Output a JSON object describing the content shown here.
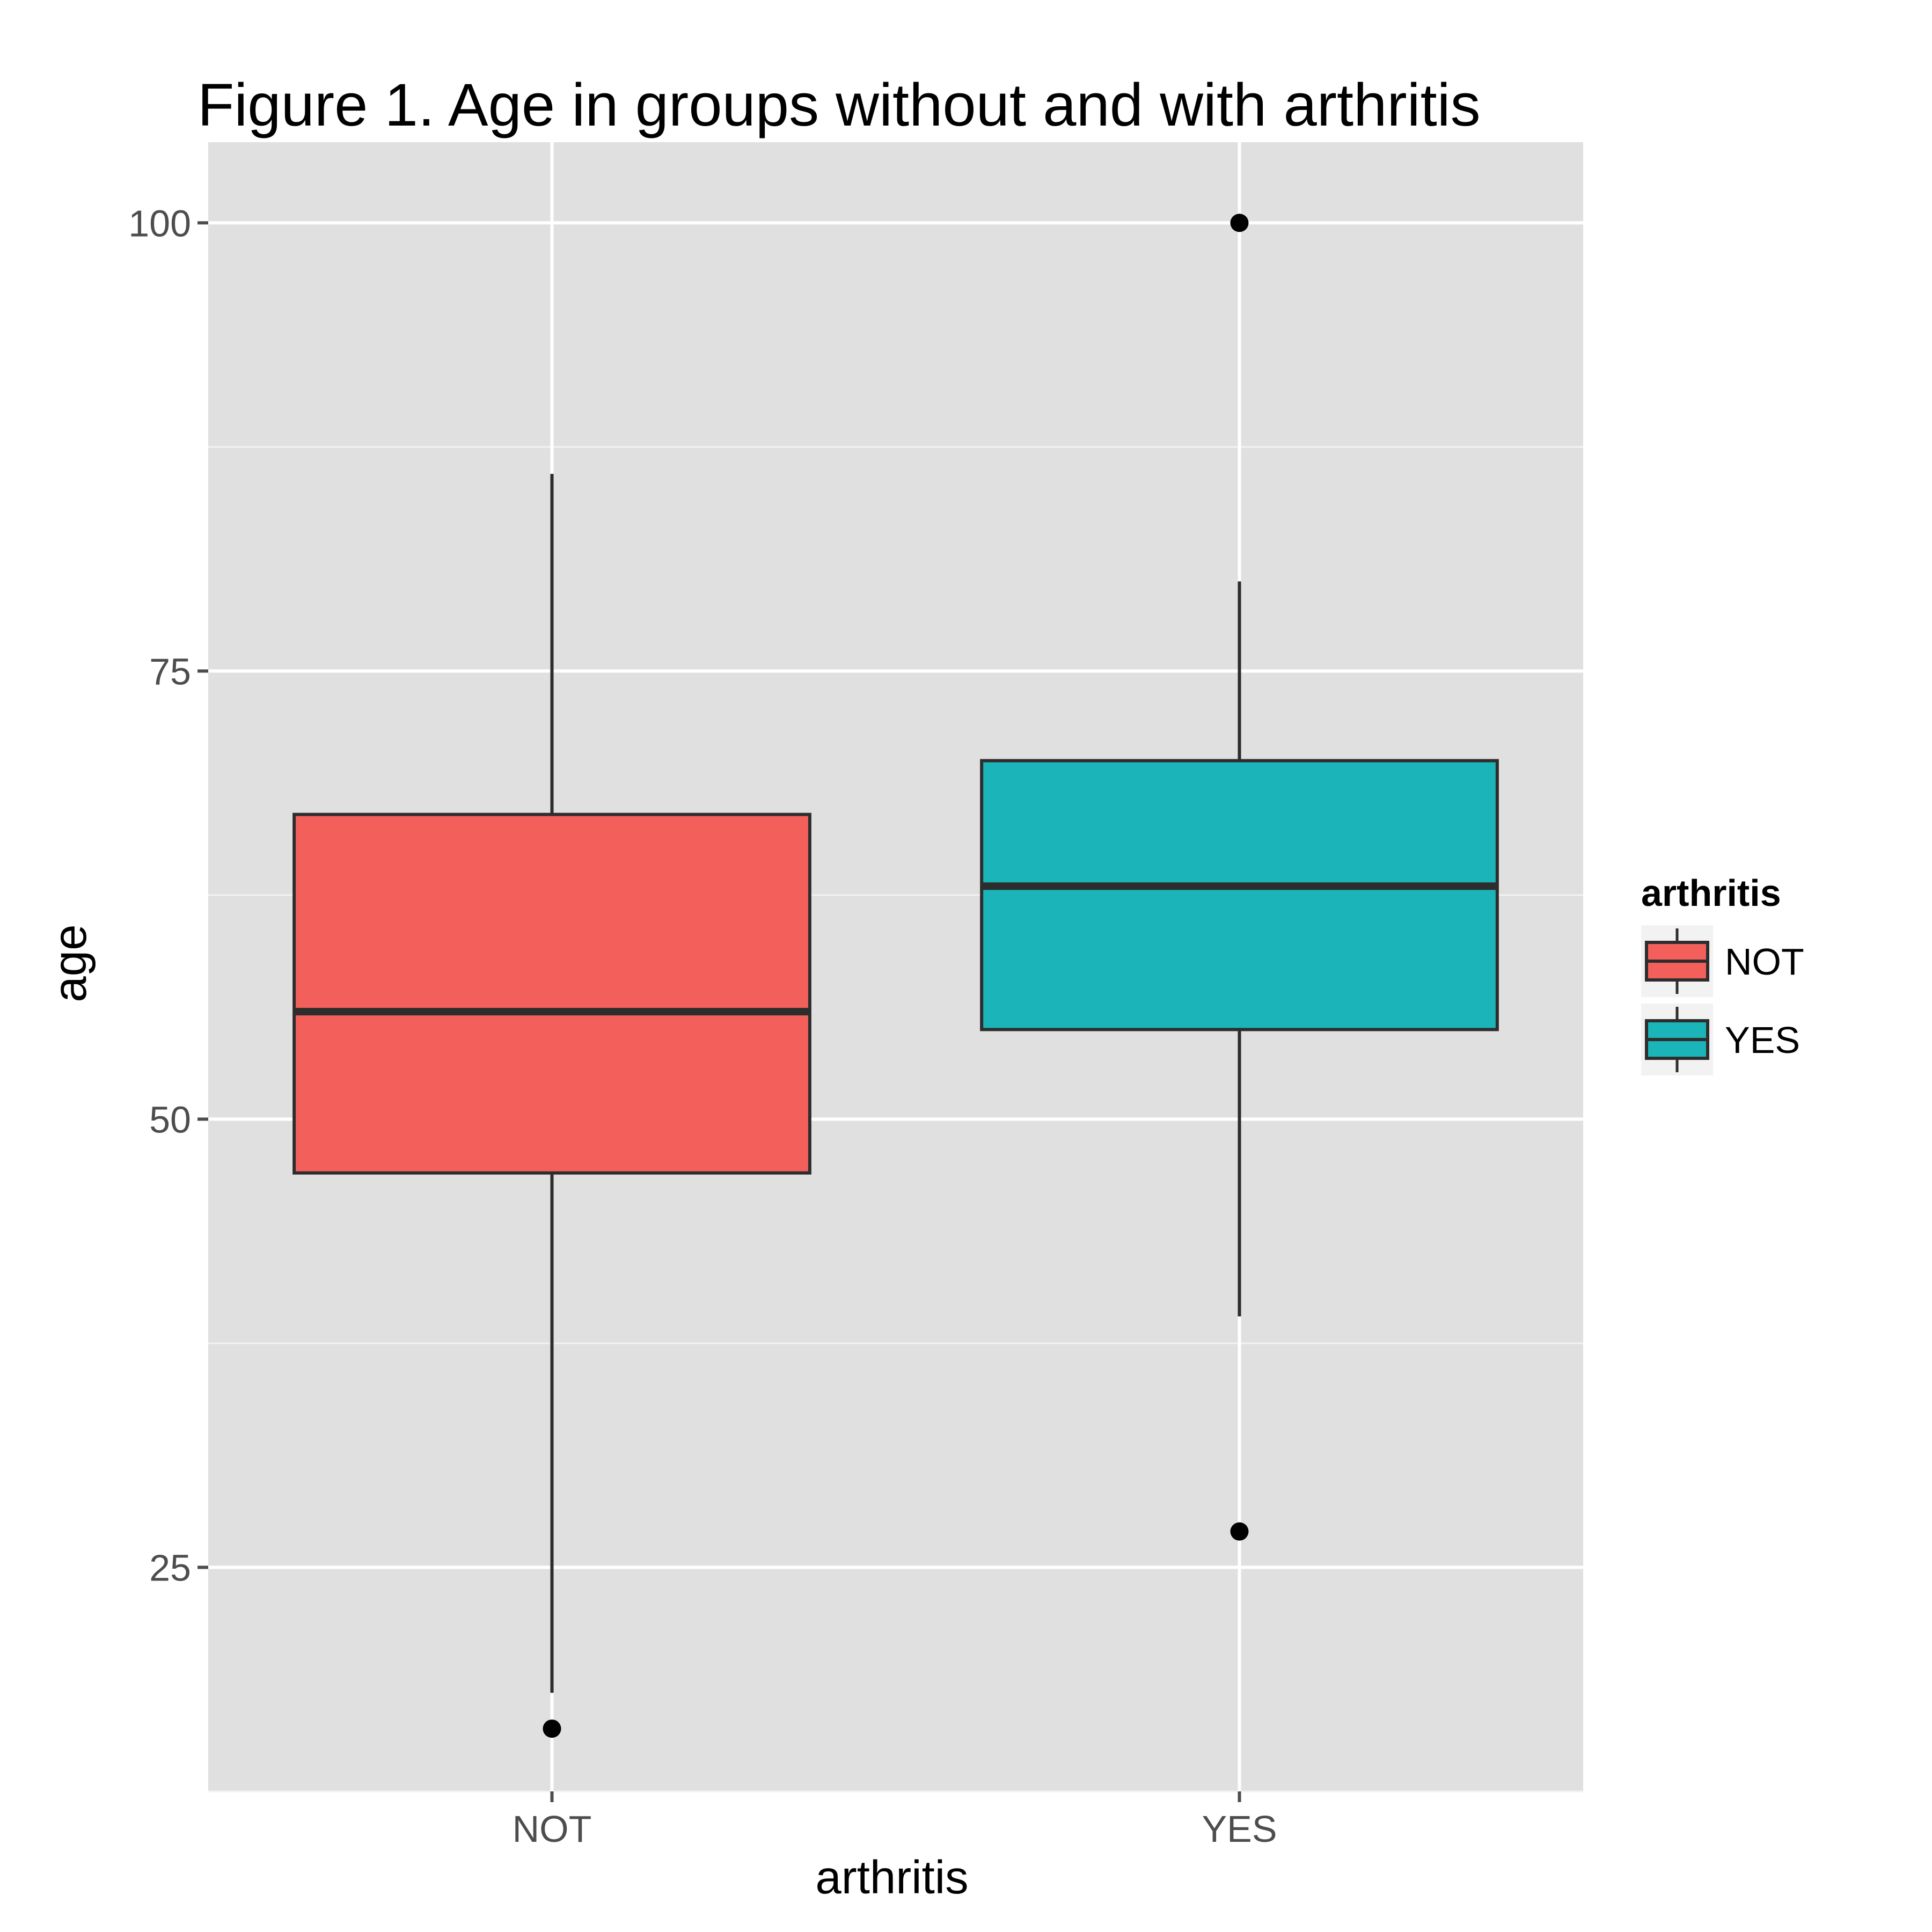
{
  "chart_data": {
    "type": "boxplot",
    "title": "Figure 1. Age in groups without and with arthritis",
    "xlabel": "arthritis",
    "ylabel": "age",
    "categories": [
      "NOT",
      "YES"
    ],
    "ylim": [
      12.5,
      104.5
    ],
    "yticks": [
      25,
      50,
      75,
      100
    ],
    "grid": true,
    "legend": {
      "title": "arthritis",
      "placement": "right",
      "entries": [
        "NOT",
        "YES"
      ]
    },
    "colors": {
      "NOT": "#f3605c",
      "YES": "#1bb4b8",
      "panel": "#e0e0e0",
      "outline": "#2d2d2d"
    },
    "series": [
      {
        "category": "NOT",
        "whisker_low": 18,
        "q1": 47,
        "median": 56,
        "q3": 67,
        "whisker_high": 86,
        "outliers": [
          16
        ]
      },
      {
        "category": "YES",
        "whisker_low": 39,
        "q1": 55,
        "median": 63,
        "q3": 70,
        "whisker_high": 80,
        "outliers": [
          100,
          27
        ]
      }
    ]
  }
}
